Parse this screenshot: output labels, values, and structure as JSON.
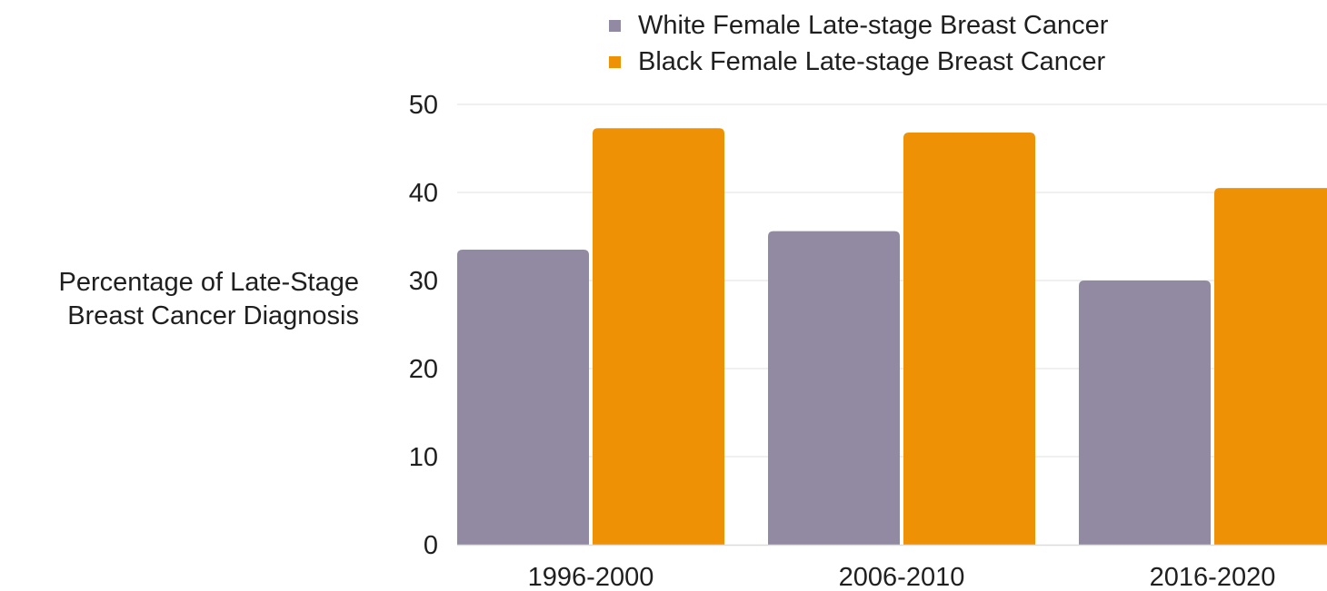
{
  "chart_data": {
    "type": "bar",
    "title": "",
    "xlabel": "",
    "ylabel_lines": [
      "Percentage of Late-Stage",
      "Breast Cancer Diagnosis"
    ],
    "categories": [
      "1996-2000",
      "2006-2010",
      "2016-2020"
    ],
    "series": [
      {
        "name": "White Female Late-stage Breast Cancer",
        "color": "#928aa2",
        "values": [
          33.5,
          35.6,
          30.0
        ]
      },
      {
        "name": "Black Female Late-stage Breast Cancer",
        "color": "#ee9105",
        "values": [
          47.3,
          46.8,
          40.5
        ]
      }
    ],
    "ylim": [
      0,
      50
    ],
    "yticks": [
      "0",
      "10",
      "20",
      "30",
      "40",
      "50"
    ],
    "grid": true,
    "legend_position": "top"
  }
}
